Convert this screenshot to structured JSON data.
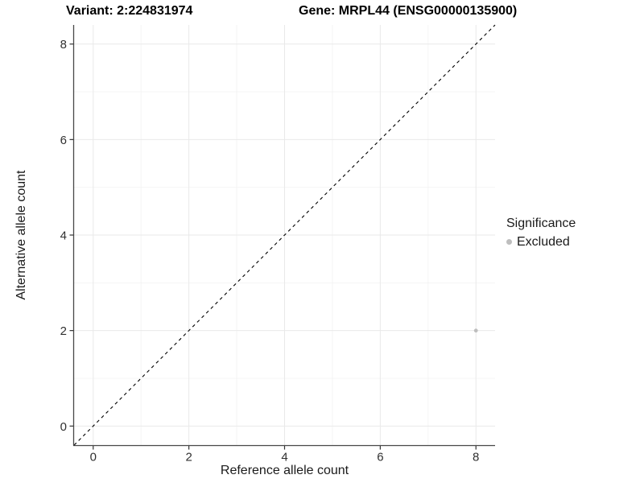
{
  "chart_data": {
    "type": "scatter",
    "title_left": "Variant: 2:224831974",
    "title_right": "Gene: MRPL44 (ENSG00000135900)",
    "xlabel": "Reference allele count",
    "ylabel": "Alternative allele count",
    "xlim": [
      -0.4,
      8.4
    ],
    "ylim": [
      -0.4,
      8.4
    ],
    "xticks": [
      0,
      2,
      4,
      6,
      8
    ],
    "yticks": [
      0,
      2,
      4,
      6,
      8
    ],
    "minor_ticks": [
      1,
      3,
      5,
      7
    ],
    "grid": true,
    "reference_line": {
      "type": "identity",
      "style": "dashed",
      "color": "#000000"
    },
    "series": [
      {
        "name": "Excluded",
        "color": "#bebebe",
        "points": [
          {
            "x": 8,
            "y": 2
          }
        ]
      }
    ],
    "legend": {
      "title": "Significance",
      "position": "right",
      "items": [
        {
          "label": "Excluded",
          "color": "#bebebe"
        }
      ]
    },
    "colors": {
      "background": "#ffffff",
      "grid_major": "#e9e9e9",
      "grid_minor": "#f4f4f4",
      "axis_line": "#474747",
      "tick_mark": "#333333",
      "tick_text": "#303030"
    }
  }
}
